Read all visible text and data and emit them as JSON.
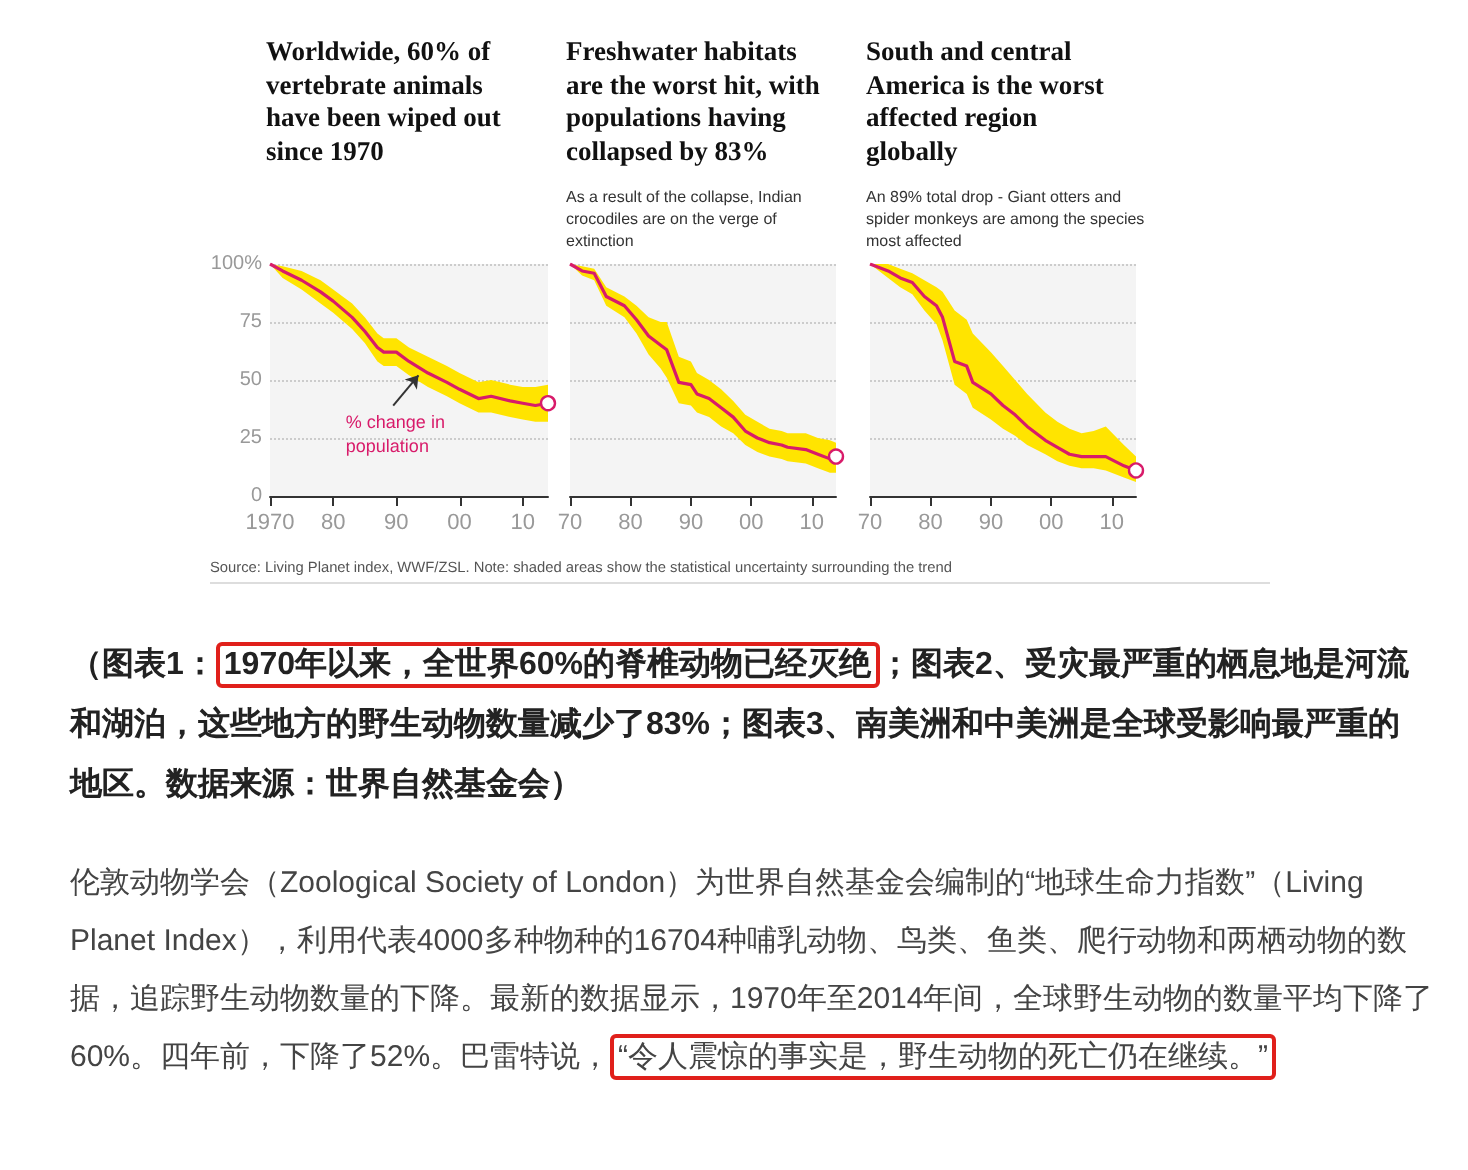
{
  "chart_data": [
    {
      "type": "line",
      "title": "Worldwide, 60% of vertebrate animals have been wiped out since 1970",
      "x": [
        1970,
        1972,
        1975,
        1978,
        1980,
        1983,
        1985,
        1987,
        1988,
        1990,
        1992,
        1995,
        1998,
        2000,
        2003,
        2005,
        2008,
        2010,
        2012,
        2014
      ],
      "series": [
        {
          "color": "#d81b6a",
          "values": [
            100,
            97,
            93,
            88,
            84,
            77,
            71,
            64,
            62,
            62,
            58,
            53,
            49,
            46,
            42,
            43,
            41,
            40,
            39,
            40
          ],
          "lower": [
            100,
            94,
            89,
            83,
            79,
            72,
            66,
            58,
            56,
            56,
            52,
            47,
            43,
            40,
            36,
            36,
            34,
            33,
            32,
            32
          ],
          "upper": [
            100,
            99,
            97,
            93,
            89,
            83,
            77,
            70,
            68,
            68,
            64,
            60,
            56,
            53,
            49,
            50,
            48,
            47,
            47,
            48
          ]
        }
      ],
      "xlim": [
        1970,
        2014
      ],
      "xticks": [
        1970,
        {
          "value": 1980,
          "label": "80"
        },
        {
          "value": 1990,
          "label": "90"
        },
        {
          "value": 2000,
          "label": "00"
        },
        {
          "value": 2010,
          "label": "10"
        }
      ],
      "ylim": [
        0,
        100
      ],
      "yticks": [
        0,
        25,
        50,
        75,
        {
          "value": 100,
          "label": "100%"
        }
      ],
      "grid": "y",
      "annotations": [
        {
          "text": "% change in population",
          "x": 1994,
          "y": 54
        },
        "Source: Living Planet index, WWF/ZSL. Note: shaded areas show the statistical uncertainty surrounding the trend",
        "（图表1：",
        "1970年以来，全世界60%的脊椎动物已经灭绝",
        "；图表2、受灾最严重的栖息地是河流和湖泊，这些地方的野生动物数量减少了83%；图表3、南美洲和中美洲是全球受影响最严重的地区。数据来源：世界自然基金会）",
        "伦敦动物学会（Zoological Society of London）为世界自然基金会编制的“地球生命力指数”（Living Planet Index），利用代表4000多种物种的16704种哺乳动物、鸟类、鱼类、爬行动物和两栖动物的数据，追踪野生动物数量的下降。最新的数据显示，1970年至2014年间，全球野生动物的数量平均下降了60%。四年前，下降了52%。巴雷特说，",
        "“令人震惊的事实是，野生动物的死亡仍在继续。”"
      ]
    },
    {
      "type": "line",
      "title": "Freshwater habitats are the worst hit, with populations having collapsed by 83%",
      "subtitle": "As a result of the collapse, Indian crocodiles are on the verge of extinction",
      "x": [
        1970,
        1972,
        1974,
        1976,
        1979,
        1981,
        1983,
        1985,
        1986,
        1988,
        1990,
        1991,
        1993,
        1995,
        1997,
        1999,
        2001,
        2003,
        2005,
        2006,
        2009,
        2011,
        2013,
        2014
      ],
      "series": [
        {
          "color": "#d81b6a",
          "values": [
            100,
            97,
            96,
            86,
            82,
            76,
            69,
            65,
            63,
            49,
            48,
            44,
            42,
            38,
            34,
            28,
            25,
            23,
            22,
            21,
            20,
            18,
            16,
            17
          ],
          "lower": [
            100,
            95,
            93,
            82,
            77,
            70,
            61,
            55,
            51,
            40,
            39,
            36,
            34,
            30,
            27,
            22,
            19,
            17,
            16,
            15,
            14,
            12,
            10,
            10
          ],
          "upper": [
            100,
            99,
            98,
            90,
            86,
            82,
            77,
            75,
            75,
            60,
            58,
            53,
            50,
            46,
            41,
            35,
            32,
            29,
            28,
            27,
            27,
            25,
            24,
            23
          ]
        }
      ],
      "xlim": [
        1970,
        2014
      ],
      "xticks": [
        {
          "value": 1970,
          "label": "70"
        },
        {
          "value": 1980,
          "label": "80"
        },
        {
          "value": 1990,
          "label": "90"
        },
        {
          "value": 2000,
          "label": "00"
        },
        {
          "value": 2010,
          "label": "10"
        }
      ],
      "ylim": [
        0,
        100
      ],
      "yticks": [
        0,
        25,
        50,
        75,
        100
      ],
      "grid": "y",
      "tick_labels": "x"
    },
    {
      "type": "line",
      "title": "South and central America is the worst affected region globally",
      "subtitle": "An 89% total drop - Giant otters and spider monkeys are among the species most affected",
      "x": [
        1970,
        1973,
        1975,
        1977,
        1979,
        1981,
        1982,
        1984,
        1986,
        1987,
        1990,
        1992,
        1994,
        1996,
        1999,
        2001,
        2003,
        2005,
        2007,
        2009,
        2012,
        2014
      ],
      "series": [
        {
          "color": "#d81b6a",
          "values": [
            100,
            97,
            94,
            92,
            86,
            82,
            77,
            58,
            56,
            49,
            44,
            39,
            35,
            30,
            24,
            21,
            18,
            17,
            17,
            17,
            13,
            11
          ],
          "lower": [
            100,
            94,
            90,
            87,
            80,
            74,
            67,
            48,
            44,
            38,
            33,
            29,
            26,
            22,
            18,
            15,
            13,
            12,
            12,
            11,
            8,
            6
          ],
          "upper": [
            100,
            100,
            98,
            96,
            93,
            90,
            88,
            80,
            76,
            70,
            62,
            56,
            50,
            44,
            36,
            32,
            29,
            27,
            28,
            30,
            22,
            17
          ]
        }
      ],
      "xlim": [
        1970,
        2014
      ],
      "xticks": [
        {
          "value": 1970,
          "label": "70"
        },
        {
          "value": 1980,
          "label": "80"
        },
        {
          "value": 1990,
          "label": "90"
        },
        {
          "value": 2000,
          "label": "00"
        },
        {
          "value": 2010,
          "label": "10"
        }
      ],
      "ylim": [
        0,
        100
      ],
      "yticks": [
        0,
        25,
        50,
        75,
        100
      ],
      "grid": "y",
      "tick_labels": "x"
    }
  ]
}
